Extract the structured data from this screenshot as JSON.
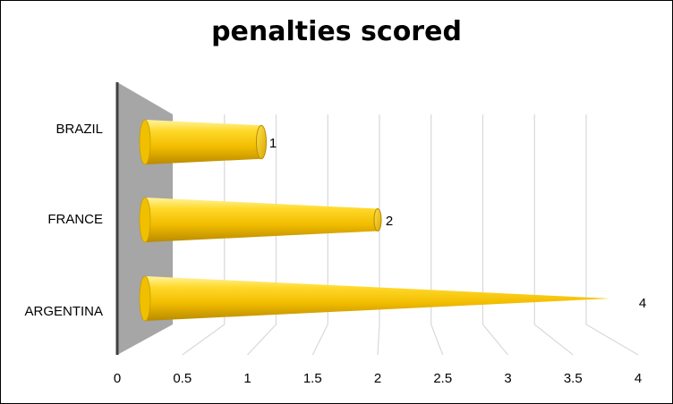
{
  "chart_data": {
    "type": "bar",
    "orientation": "horizontal",
    "shape": "cone-3d",
    "title": "penalties scored",
    "categories": [
      "BRAZIL",
      "FRANCE",
      "ARGENTINA"
    ],
    "values": [
      1,
      2,
      4
    ],
    "data_labels": [
      "1",
      "2",
      "4"
    ],
    "xlim": [
      0,
      4
    ],
    "x_ticks": [
      "0",
      "0.5",
      "1",
      "1.5",
      "2",
      "2.5",
      "3",
      "3.5",
      "4"
    ],
    "grid": true,
    "legend": "none",
    "colors": {
      "bar": "#f5c518",
      "bar_dark": "#c99a00",
      "wall": "#a6a6a6",
      "grid": "#d9d9d9"
    }
  }
}
